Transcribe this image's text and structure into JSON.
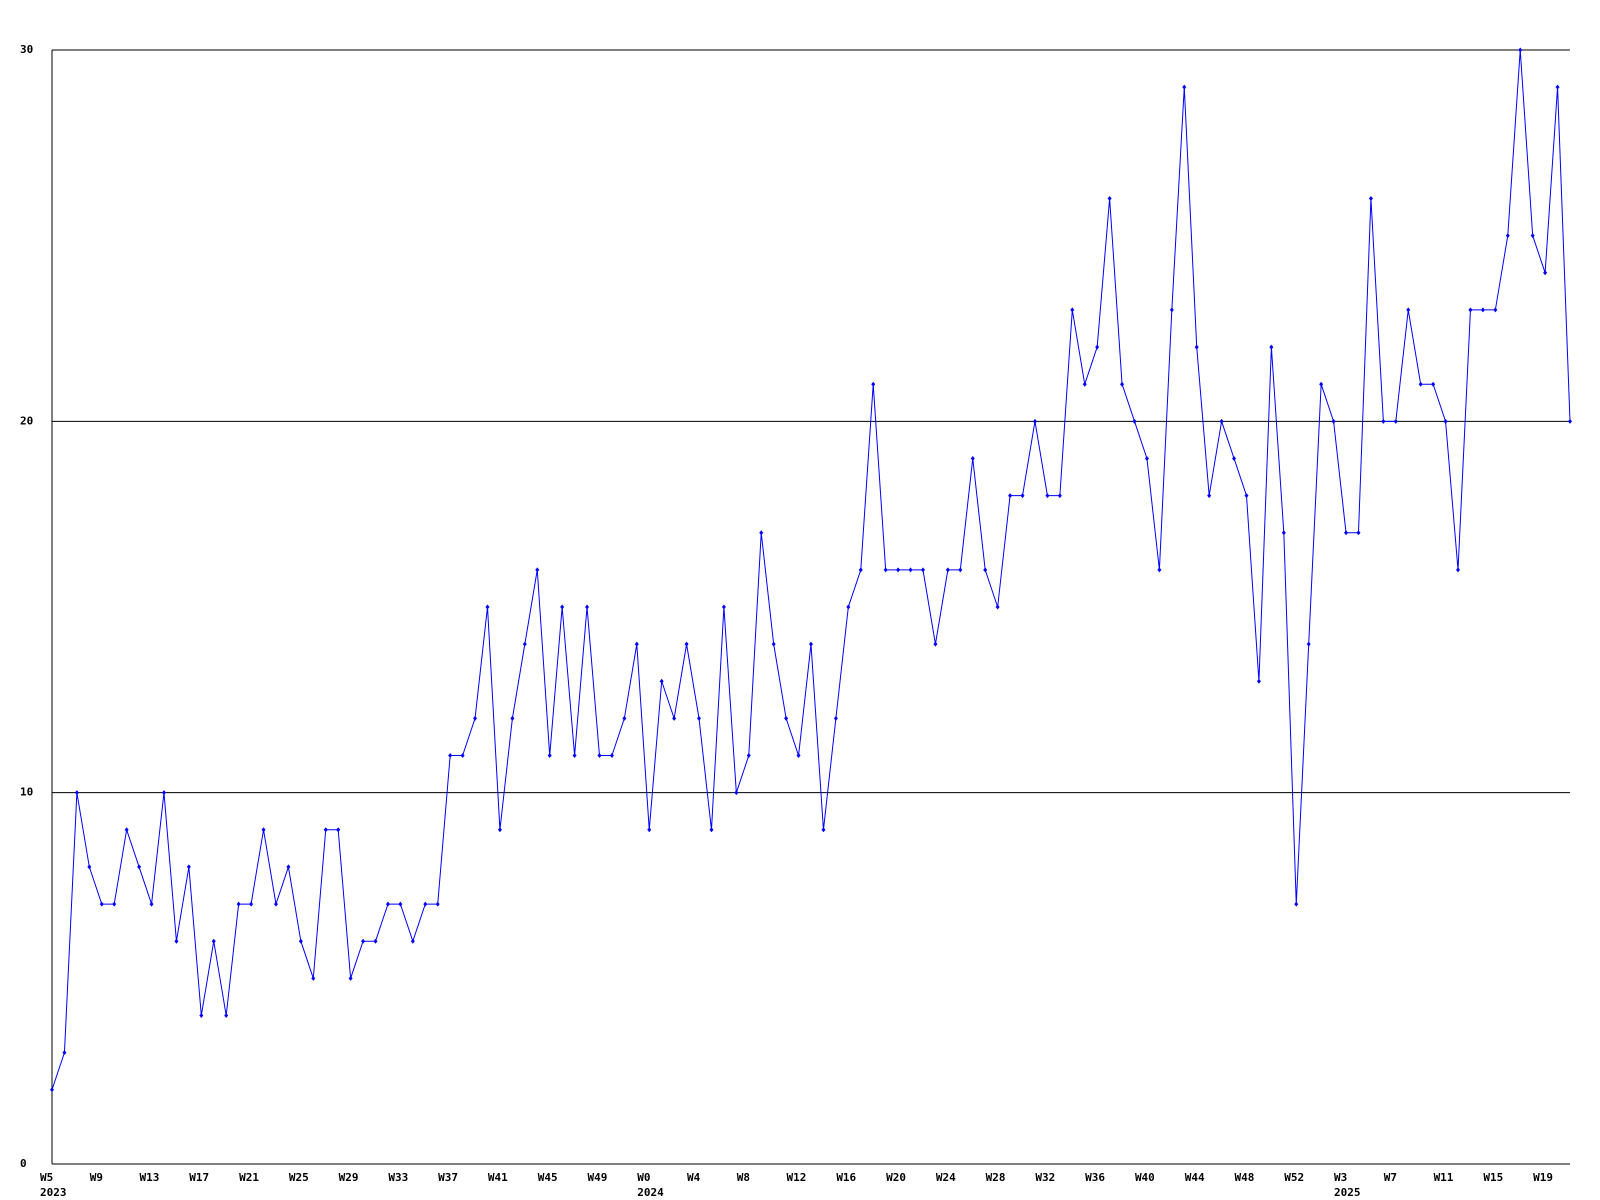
{
  "chart_data": {
    "type": "line",
    "categories": [
      "W5",
      null,
      null,
      null,
      "W9",
      null,
      null,
      null,
      "W13",
      null,
      null,
      null,
      "W17",
      null,
      null,
      null,
      "W21",
      null,
      null,
      null,
      "W25",
      null,
      null,
      null,
      "W29",
      null,
      null,
      null,
      "W33",
      null,
      null,
      null,
      "W37",
      null,
      null,
      null,
      "W41",
      null,
      null,
      null,
      "W45",
      null,
      null,
      null,
      "W49",
      null,
      null,
      null,
      "W0",
      null,
      null,
      null,
      "W4",
      null,
      null,
      null,
      "W8",
      null,
      null,
      null,
      "W12",
      null,
      null,
      null,
      "W16",
      null,
      null,
      null,
      "W20",
      null,
      null,
      null,
      "W24",
      null,
      null,
      null,
      "W28",
      null,
      null,
      null,
      "W32",
      null,
      null,
      null,
      "W36",
      null,
      null,
      null,
      "W40",
      null,
      null,
      null,
      "W44",
      null,
      null,
      null,
      "W48",
      null,
      null,
      null,
      "W52",
      null,
      null,
      null,
      "W3",
      null,
      null,
      null,
      "W7",
      null,
      null,
      null,
      "W11",
      null,
      null,
      null,
      "W15",
      null,
      null,
      null,
      "W19",
      null,
      null
    ],
    "year_labels": [
      "2023",
      null,
      null,
      null,
      null,
      null,
      null,
      null,
      null,
      null,
      null,
      null,
      null,
      null,
      null,
      null,
      null,
      null,
      null,
      null,
      null,
      null,
      null,
      null,
      null,
      null,
      null,
      null,
      null,
      null,
      null,
      null,
      null,
      null,
      null,
      null,
      null,
      null,
      null,
      null,
      null,
      null,
      null,
      null,
      null,
      null,
      null,
      null,
      "2024",
      null,
      null,
      null,
      null,
      null,
      null,
      null,
      null,
      null,
      null,
      null,
      null,
      null,
      null,
      null,
      null,
      null,
      null,
      null,
      null,
      null,
      null,
      null,
      null,
      null,
      null,
      null,
      null,
      null,
      null,
      null,
      null,
      null,
      null,
      null,
      null,
      null,
      null,
      null,
      null,
      null,
      null,
      null,
      null,
      null,
      null,
      null,
      null,
      null,
      null,
      null,
      null,
      null,
      null,
      null,
      "2025",
      null,
      null,
      null,
      null,
      null,
      null,
      null,
      null,
      null,
      null,
      null,
      null,
      null,
      null,
      null,
      null,
      null
    ],
    "values": [
      2,
      3,
      10,
      8,
      7,
      7,
      9,
      8,
      7,
      10,
      6,
      8,
      4,
      6,
      4,
      7,
      7,
      9,
      7,
      8,
      6,
      5,
      9,
      9,
      5,
      6,
      6,
      7,
      7,
      6,
      7,
      7,
      11,
      11,
      12,
      15,
      9,
      12,
      14,
      16,
      11,
      15,
      11,
      15,
      11,
      11,
      12,
      14,
      9,
      13,
      12,
      14,
      12,
      9,
      15,
      10,
      11,
      17,
      14,
      12,
      11,
      14,
      9,
      12,
      15,
      16,
      21,
      16,
      16,
      16,
      16,
      14,
      16,
      16,
      19,
      16,
      15,
      18,
      18,
      20,
      18,
      18,
      23,
      21,
      22,
      26,
      21,
      20,
      19,
      16,
      23,
      29,
      22,
      18,
      20,
      19,
      18,
      13,
      22,
      17,
      7,
      14,
      21,
      20,
      17,
      17,
      26,
      20,
      20,
      23,
      21,
      21,
      20,
      16,
      23,
      23,
      23,
      25,
      30,
      25,
      24,
      29,
      20
    ],
    "color": "#0000ff",
    "ylim": [
      0,
      30
    ],
    "yticks": [
      0,
      10,
      20,
      30
    ],
    "grid": true
  }
}
